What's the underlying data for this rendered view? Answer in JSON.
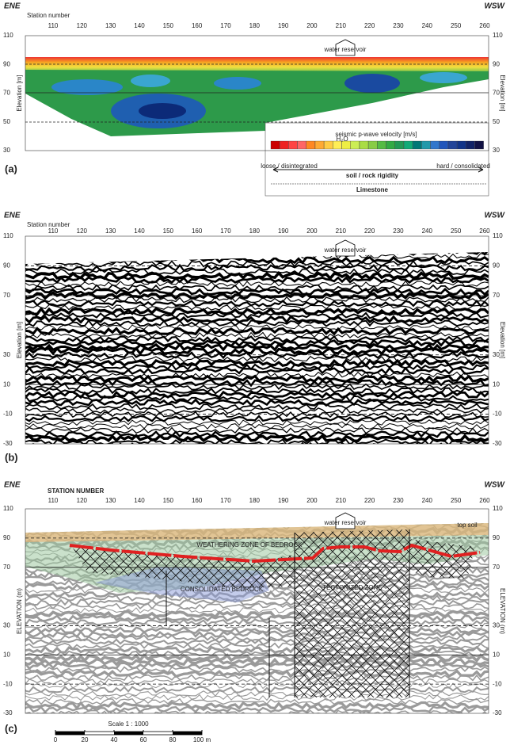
{
  "panels": [
    {
      "label": "(a)",
      "left_title": "ENE",
      "right_title": "WSW",
      "x_axis_title": "Station number",
      "y_axis_title": "Elevation [m]",
      "building": "water reservoir",
      "stations": [
        110,
        120,
        130,
        140,
        150,
        160,
        170,
        180,
        190,
        200,
        210,
        220,
        230,
        240,
        250,
        260
      ],
      "elevations": [
        110,
        90,
        70,
        50,
        30
      ],
      "legend": {
        "title": "seismic p-wave velocity [m/s]",
        "marker": "H₂O",
        "rigidity": "soil / rock rigidity",
        "loose": "loose / disintegrated",
        "hard": "hard / consolidated",
        "rock": "Limestone"
      }
    },
    {
      "label": "(b)",
      "left_title": "ENE",
      "right_title": "WSW",
      "x_axis_title": "Station number",
      "y_axis_title": "Elevation [m]",
      "building": "water reservoir",
      "stations": [
        110,
        120,
        130,
        140,
        150,
        160,
        170,
        180,
        190,
        200,
        210,
        220,
        230,
        240,
        250,
        260
      ],
      "elevations": [
        110,
        90,
        70,
        30,
        10,
        -10,
        -30
      ]
    },
    {
      "label": "(c)",
      "left_title": "ENE",
      "right_title": "WSW",
      "x_axis_title": "STATION NUMBER",
      "y_axis_title": "ELEVATION (m)",
      "building": "water reservoir",
      "stations": [
        110,
        120,
        130,
        140,
        150,
        160,
        170,
        180,
        190,
        200,
        210,
        220,
        230,
        240,
        250,
        260
      ],
      "elevations": [
        110,
        90,
        70,
        30,
        10,
        -10,
        -30
      ],
      "zones": {
        "weathering": "WEATHERING ZONE OF BEDROCK",
        "consolidated": "CONSOLIDATED BEDROCK",
        "tectonized": "TECTONIZED ZONE",
        "topsoil": "top soil"
      }
    }
  ],
  "scale": {
    "title": "Scale 1 : 1000",
    "ticks": [
      0,
      20,
      40,
      60,
      80,
      {
        "value": 100,
        "label": "100 m"
      }
    ]
  }
}
